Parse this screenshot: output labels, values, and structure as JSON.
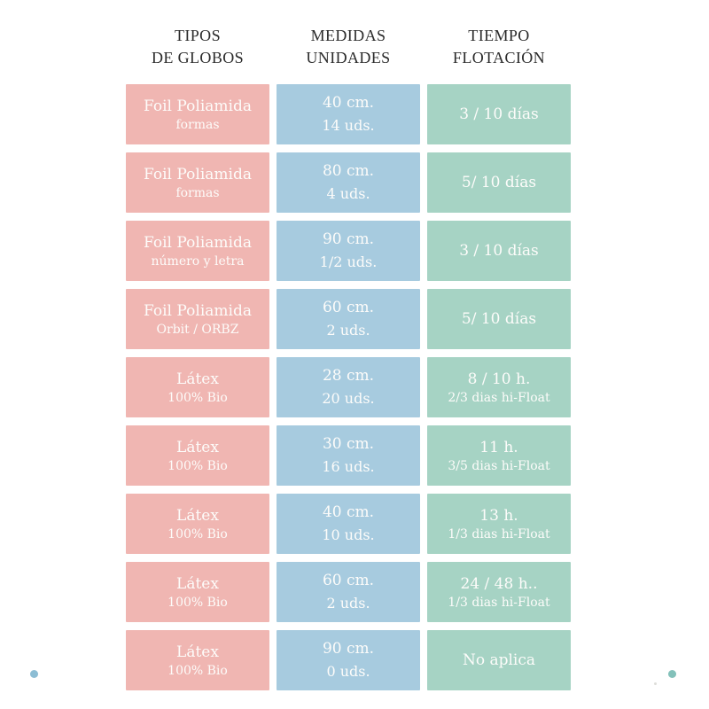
{
  "colors": {
    "type_bg": "#f0b6b2",
    "measure_bg": "#a7cbdf",
    "float_bg": "#a6d3c4",
    "cell_text": "#fdfcfa",
    "header_text": "#2b2b2b",
    "dot_left": "#8cbdd4",
    "dot_right": "#83c1ba",
    "dot_tiny": "#cfcfc9"
  },
  "headers": [
    {
      "line1": "TIPOS",
      "line2": "DE GLOBOS"
    },
    {
      "line1": "MEDIDAS",
      "line2": "UNIDADES"
    },
    {
      "line1": "TIEMPO",
      "line2": "FLOTACIÓN"
    }
  ],
  "rows": [
    {
      "type_line1": "Foil Poliamida",
      "type_line2": "formas",
      "measure_line1": "40 cm.",
      "measure_line2": "14 uds.",
      "float_line1": "3 / 10 días",
      "float_line2": ""
    },
    {
      "type_line1": "Foil Poliamida",
      "type_line2": "formas",
      "measure_line1": "80 cm.",
      "measure_line2": "4 uds.",
      "float_line1": "5/ 10 días",
      "float_line2": ""
    },
    {
      "type_line1": "Foil Poliamida",
      "type_line2": "número y letra",
      "measure_line1": "90 cm.",
      "measure_line2": "1/2 uds.",
      "float_line1": "3 / 10 días",
      "float_line2": ""
    },
    {
      "type_line1": "Foil Poliamida",
      "type_line2": "Orbit / ORBZ",
      "measure_line1": "60 cm.",
      "measure_line2": "2 uds.",
      "float_line1": "5/ 10 días",
      "float_line2": ""
    },
    {
      "type_line1": "Látex",
      "type_line2": "100% Bio",
      "measure_line1": "28 cm.",
      "measure_line2": "20 uds.",
      "float_line1": "8 / 10 h.",
      "float_line2": "2/3 dias hi-Float"
    },
    {
      "type_line1": "Látex",
      "type_line2": "100% Bio",
      "measure_line1": "30 cm.",
      "measure_line2": "16 uds.",
      "float_line1": "11 h.",
      "float_line2": "3/5 dias hi-Float"
    },
    {
      "type_line1": "Látex",
      "type_line2": "100% Bio",
      "measure_line1": "40 cm.",
      "measure_line2": "10 uds.",
      "float_line1": "13 h.",
      "float_line2": "1/3 dias hi-Float"
    },
    {
      "type_line1": "Látex",
      "type_line2": "100% Bio",
      "measure_line1": "60 cm.",
      "measure_line2": "2 uds.",
      "float_line1": "24 / 48 h..",
      "float_line2": "1/3 dias hi-Float"
    },
    {
      "type_line1": "Látex",
      "type_line2": "100% Bio",
      "measure_line1": "90 cm.",
      "measure_line2": "0 uds.",
      "float_line1": "No aplica",
      "float_line2": ""
    }
  ],
  "chart_data": {
    "type": "table",
    "title": "",
    "columns": [
      "TIPOS DE GLOBOS",
      "MEDIDAS UNIDADES",
      "TIEMPO FLOTACIÓN"
    ],
    "rows": [
      [
        "Foil Poliamida formas",
        "40 cm. 14 uds.",
        "3 / 10 días"
      ],
      [
        "Foil Poliamida formas",
        "80 cm. 4 uds.",
        "5/ 10 días"
      ],
      [
        "Foil Poliamida número y letra",
        "90 cm. 1/2 uds.",
        "3 / 10 días"
      ],
      [
        "Foil Poliamida Orbit / ORBZ",
        "60 cm. 2 uds.",
        "5/ 10 días"
      ],
      [
        "Látex 100% Bio",
        "28 cm. 20 uds.",
        "8 / 10 h. 2/3 dias hi-Float"
      ],
      [
        "Látex 100% Bio",
        "30 cm. 16 uds.",
        "11 h. 3/5 dias hi-Float"
      ],
      [
        "Látex 100% Bio",
        "40 cm. 10 uds.",
        "13 h. 1/3 dias hi-Float"
      ],
      [
        "Látex 100% Bio",
        "60 cm. 2 uds.",
        "24 / 48 h.. 1/3 dias hi-Float"
      ],
      [
        "Látex 100% Bio",
        "90 cm. 0 uds.",
        "No aplica"
      ]
    ]
  }
}
